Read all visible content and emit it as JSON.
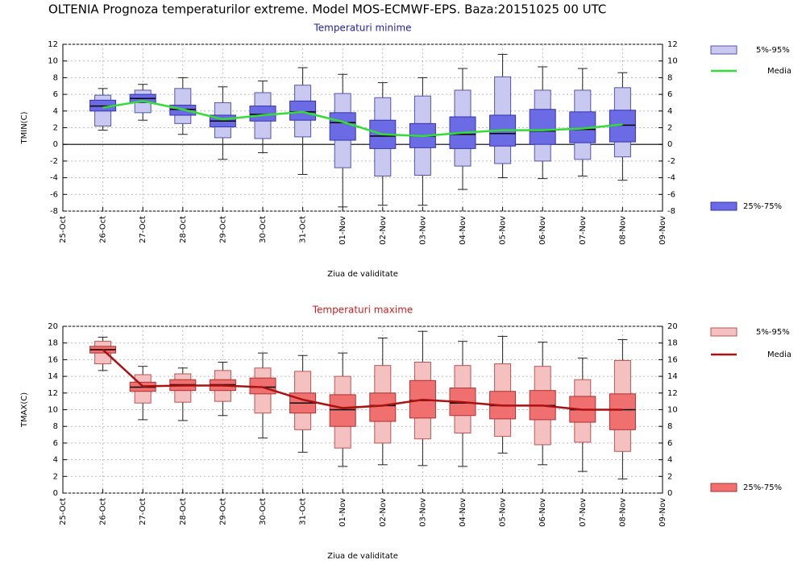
{
  "title": "OLTENIA  Prognoza temperaturilor extreme.  Model MOS-ECMWF-EPS. Baza:20151025 00 UTC",
  "chart_data": [
    {
      "type": "box",
      "title": "Temperaturi minime",
      "title_color": "#2222aa",
      "ylabel": "TMIN(C)",
      "xlabel": "Ziua de validitate",
      "categories": [
        "25-Oct",
        "26-Oct",
        "27-Oct",
        "28-Oct",
        "29-Oct",
        "30-Oct",
        "31-Oct",
        "01-Nov",
        "02-Nov",
        "03-Nov",
        "04-Nov",
        "05-Nov",
        "06-Nov",
        "07-Nov",
        "08-Nov",
        "09-Nov"
      ],
      "ylim": [
        -8,
        12
      ],
      "yticks": [
        -8,
        -6,
        -4,
        -2,
        0,
        2,
        4,
        6,
        8,
        10,
        12
      ],
      "grid": true,
      "whisker": {
        "min": [
          null,
          1.7,
          2.9,
          1.2,
          -1.8,
          -1.0,
          -3.6,
          -7.5,
          -7.3,
          -7.3,
          -5.4,
          -4.0,
          -4.1,
          -3.8,
          -4.3,
          null
        ],
        "max": [
          null,
          6.7,
          7.2,
          8.0,
          6.9,
          7.6,
          9.2,
          8.4,
          7.4,
          8.0,
          9.1,
          10.8,
          9.3,
          9.1,
          8.6,
          null
        ]
      },
      "outer": {
        "name": "5%-95%",
        "color": "#c8c8f0",
        "stroke": "#5555aa",
        "low": [
          null,
          2.2,
          3.8,
          2.5,
          0.8,
          0.7,
          0.9,
          -2.8,
          -3.8,
          -3.7,
          -2.6,
          -2.3,
          -2.0,
          -1.8,
          -1.5,
          null
        ],
        "high": [
          null,
          5.9,
          6.5,
          6.7,
          5.0,
          6.2,
          7.1,
          6.1,
          5.6,
          5.8,
          6.5,
          8.1,
          6.5,
          6.5,
          6.8,
          null
        ]
      },
      "inner": {
        "name": "25%-75%",
        "color": "#6b6be6",
        "stroke": "#3333aa",
        "low": [
          null,
          4.0,
          5.0,
          3.5,
          2.1,
          2.8,
          2.9,
          0.5,
          -0.5,
          -0.4,
          -0.5,
          -0.2,
          0.0,
          0.2,
          0.3,
          null
        ],
        "high": [
          null,
          5.3,
          6.0,
          4.7,
          3.5,
          4.6,
          5.2,
          3.8,
          2.9,
          2.5,
          3.3,
          3.5,
          4.2,
          3.9,
          4.1,
          null
        ]
      },
      "median": [
        null,
        4.6,
        5.5,
        4.2,
        2.8,
        3.6,
        3.9,
        2.6,
        1.0,
        1.0,
        1.2,
        1.3,
        1.6,
        1.8,
        2.3,
        null
      ],
      "mean": {
        "name": "Media",
        "color": "#33dd33",
        "values": [
          null,
          4.4,
          5.2,
          4.2,
          3.0,
          3.5,
          3.9,
          2.7,
          1.2,
          1.0,
          1.4,
          1.7,
          1.7,
          1.9,
          2.4,
          null
        ]
      }
    },
    {
      "type": "box",
      "title": "Temperaturi maxime",
      "title_color": "#cc2222",
      "ylabel": "TMAX(C)",
      "xlabel": "Ziua de validitate",
      "categories": [
        "25-Oct",
        "26-Oct",
        "27-Oct",
        "28-Oct",
        "29-Oct",
        "30-Oct",
        "31-Oct",
        "01-Nov",
        "02-Nov",
        "03-Nov",
        "04-Nov",
        "05-Nov",
        "06-Nov",
        "07-Nov",
        "08-Nov",
        "09-Nov"
      ],
      "ylim": [
        0,
        20
      ],
      "yticks": [
        0,
        2,
        4,
        6,
        8,
        10,
        12,
        14,
        16,
        18,
        20
      ],
      "grid": true,
      "whisker": {
        "min": [
          null,
          14.7,
          8.8,
          8.7,
          9.3,
          6.6,
          4.9,
          3.2,
          3.4,
          3.3,
          3.2,
          4.8,
          3.4,
          2.6,
          1.7,
          null
        ],
        "max": [
          null,
          18.7,
          15.2,
          15.0,
          15.7,
          16.8,
          16.5,
          16.8,
          18.6,
          19.4,
          18.2,
          18.8,
          18.1,
          16.2,
          18.4,
          null
        ]
      },
      "outer": {
        "name": "5%-95%",
        "color": "#f5c0c0",
        "stroke": "#bb5555",
        "low": [
          null,
          15.5,
          10.8,
          10.9,
          11.0,
          9.6,
          7.6,
          5.4,
          6.0,
          6.5,
          7.2,
          6.8,
          5.8,
          6.1,
          5.0,
          null
        ],
        "high": [
          null,
          18.2,
          14.2,
          14.3,
          14.7,
          15.0,
          14.6,
          14.0,
          15.3,
          15.7,
          15.3,
          15.5,
          15.2,
          13.6,
          15.9,
          null
        ]
      },
      "inner": {
        "name": "25%-75%",
        "color": "#f07070",
        "stroke": "#aa3333",
        "low": [
          null,
          16.8,
          12.2,
          12.3,
          12.3,
          11.9,
          9.6,
          8.0,
          8.6,
          9.0,
          9.3,
          8.9,
          8.8,
          8.5,
          7.6,
          null
        ],
        "high": [
          null,
          17.6,
          13.3,
          13.6,
          13.6,
          13.8,
          12.0,
          11.8,
          12.0,
          13.5,
          12.6,
          12.2,
          12.3,
          11.6,
          11.9,
          null
        ]
      },
      "median": [
        null,
        17.2,
        12.7,
        13.0,
        13.0,
        12.7,
        10.8,
        10.0,
        10.5,
        11.1,
        10.8,
        10.5,
        10.5,
        10.0,
        10.0,
        null
      ],
      "mean": {
        "name": "Media",
        "color": "#aa1111",
        "values": [
          null,
          17.2,
          12.8,
          12.9,
          12.9,
          12.7,
          11.2,
          10.2,
          10.5,
          11.2,
          10.9,
          10.5,
          10.5,
          10.0,
          10.0,
          null
        ]
      }
    }
  ]
}
